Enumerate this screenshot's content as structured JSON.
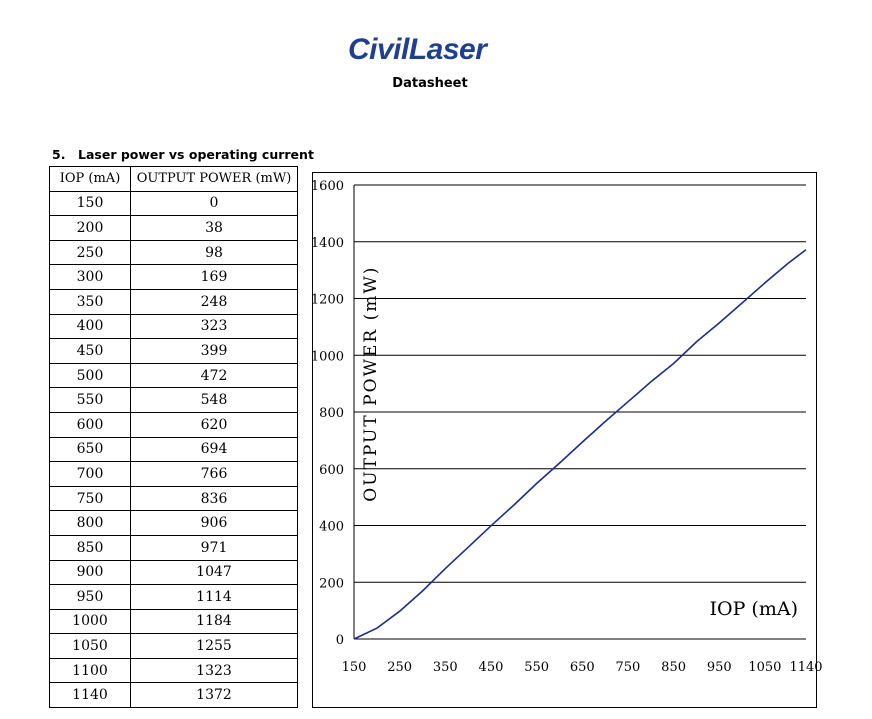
{
  "header": {
    "logo_text": "CivilLaser",
    "doc_title": "Datasheet"
  },
  "section": {
    "number": "5.",
    "title": "Laser power vs operating current"
  },
  "table": {
    "headers": [
      "IOP (mA)",
      "OUTPUT POWER (mW)"
    ],
    "rows": [
      [
        "150",
        "0"
      ],
      [
        "200",
        "38"
      ],
      [
        "250",
        "98"
      ],
      [
        "300",
        "169"
      ],
      [
        "350",
        "248"
      ],
      [
        "400",
        "323"
      ],
      [
        "450",
        "399"
      ],
      [
        "500",
        "472"
      ],
      [
        "550",
        "548"
      ],
      [
        "600",
        "620"
      ],
      [
        "650",
        "694"
      ],
      [
        "700",
        "766"
      ],
      [
        "750",
        "836"
      ],
      [
        "800",
        "906"
      ],
      [
        "850",
        "971"
      ],
      [
        "900",
        "1047"
      ],
      [
        "950",
        "1114"
      ],
      [
        "1000",
        "1184"
      ],
      [
        "1050",
        "1255"
      ],
      [
        "1100",
        "1323"
      ],
      [
        "1140",
        "1372"
      ]
    ]
  },
  "chart_data": {
    "type": "line",
    "title": "",
    "xlabel": "IOP (mA)",
    "ylabel": "OUTPUT POWER (mW)",
    "x": [
      150,
      200,
      250,
      300,
      350,
      400,
      450,
      500,
      550,
      600,
      650,
      700,
      750,
      800,
      850,
      900,
      950,
      1000,
      1050,
      1100,
      1140
    ],
    "series": [
      {
        "values": [
          0,
          38,
          98,
          169,
          248,
          323,
          399,
          472,
          548,
          620,
          694,
          766,
          836,
          906,
          971,
          1047,
          1114,
          1184,
          1255,
          1323,
          1372
        ]
      }
    ],
    "xlim": [
      150,
      1140
    ],
    "ylim": [
      0,
      1600
    ],
    "xticks": [
      "150",
      "250",
      "350",
      "450",
      "550",
      "650",
      "750",
      "850",
      "950",
      "1050",
      "1140"
    ],
    "xtick_values": [
      150,
      250,
      350,
      450,
      550,
      650,
      750,
      850,
      950,
      1050,
      1140
    ],
    "yticks": [
      "0",
      "200",
      "400",
      "600",
      "800",
      "1000",
      "1200",
      "1400",
      "1600"
    ],
    "ytick_values": [
      0,
      200,
      400,
      600,
      800,
      1000,
      1200,
      1400,
      1600
    ],
    "grid": "horizontal",
    "line_color": "#1a2f8a"
  }
}
